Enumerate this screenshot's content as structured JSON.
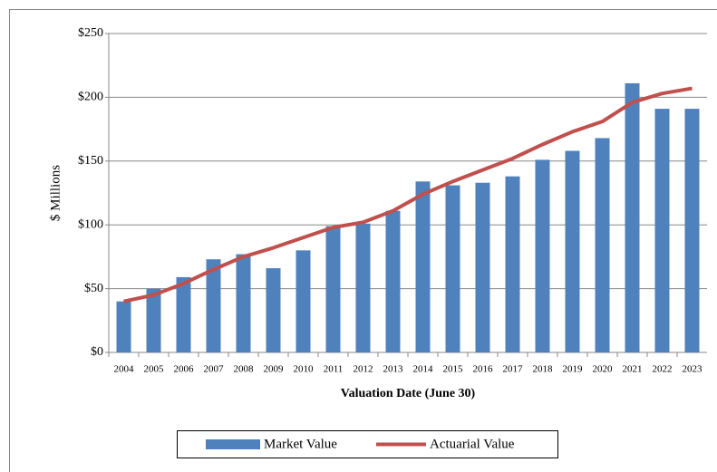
{
  "chart_data": {
    "type": "bar",
    "y_label": "$ Millions",
    "x_label": "Valuation Date (June 30)",
    "categories": [
      "2004",
      "2005",
      "2006",
      "2007",
      "2008",
      "2009",
      "2010",
      "2011",
      "2012",
      "2013",
      "2014",
      "2015",
      "2016",
      "2017",
      "2018",
      "2019",
      "2020",
      "2021",
      "2022",
      "2023"
    ],
    "series": [
      {
        "name": "Market Value",
        "type": "bar",
        "color": "#4f81bd",
        "values": [
          40,
          50,
          59,
          73,
          77,
          66,
          80,
          99,
          101,
          111,
          134,
          131,
          133,
          138,
          151,
          158,
          168,
          211,
          191,
          191
        ]
      },
      {
        "name": "Actuarial Value",
        "type": "line",
        "color": "#c0504d",
        "values": [
          40,
          45,
          54,
          65,
          75,
          82,
          90,
          98,
          102,
          111,
          124,
          134,
          143,
          152,
          163,
          173,
          181,
          196,
          203,
          207
        ]
      }
    ],
    "ylim": [
      0,
      250
    ],
    "yticks": [
      {
        "value": 0,
        "label": "$0"
      },
      {
        "value": 50,
        "label": "$50"
      },
      {
        "value": 100,
        "label": "$100"
      },
      {
        "value": 150,
        "label": "$150"
      },
      {
        "value": 200,
        "label": "$200"
      },
      {
        "value": 250,
        "label": "$250"
      }
    ],
    "grid": true,
    "legend": "bottom"
  }
}
